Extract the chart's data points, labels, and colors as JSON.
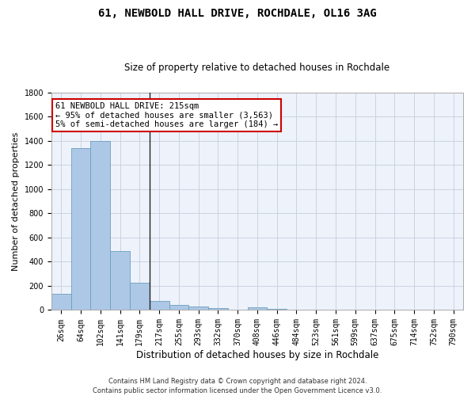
{
  "title": "61, NEWBOLD HALL DRIVE, ROCHDALE, OL16 3AG",
  "subtitle": "Size of property relative to detached houses in Rochdale",
  "xlabel": "Distribution of detached houses by size in Rochdale",
  "ylabel": "Number of detached properties",
  "bar_labels": [
    "26sqm",
    "64sqm",
    "102sqm",
    "141sqm",
    "179sqm",
    "217sqm",
    "255sqm",
    "293sqm",
    "332sqm",
    "370sqm",
    "408sqm",
    "446sqm",
    "484sqm",
    "523sqm",
    "561sqm",
    "599sqm",
    "637sqm",
    "675sqm",
    "714sqm",
    "752sqm",
    "790sqm"
  ],
  "bar_values": [
    135,
    1340,
    1400,
    490,
    225,
    75,
    45,
    28,
    15,
    0,
    20,
    10,
    0,
    0,
    0,
    0,
    0,
    0,
    0,
    0,
    0
  ],
  "bar_color": "#adc8e6",
  "bar_edge_color": "#6a9ec0",
  "vline_index": 4.5,
  "annotation_text": "61 NEWBOLD HALL DRIVE: 215sqm\n← 95% of detached houses are smaller (3,563)\n5% of semi-detached houses are larger (184) →",
  "annotation_box_color": "#ffffff",
  "annotation_box_edge": "#cc0000",
  "ylim": [
    0,
    1800
  ],
  "yticks": [
    0,
    200,
    400,
    600,
    800,
    1000,
    1200,
    1400,
    1600,
    1800
  ],
  "footer": "Contains HM Land Registry data © Crown copyright and database right 2024.\nContains public sector information licensed under the Open Government Licence v3.0.",
  "bg_color": "#eef2fa",
  "grid_color": "#c5cfe0",
  "title_fontsize": 10,
  "subtitle_fontsize": 8.5,
  "xlabel_fontsize": 8.5,
  "ylabel_fontsize": 8,
  "tick_fontsize": 7,
  "footer_fontsize": 6,
  "annot_fontsize": 7.5
}
